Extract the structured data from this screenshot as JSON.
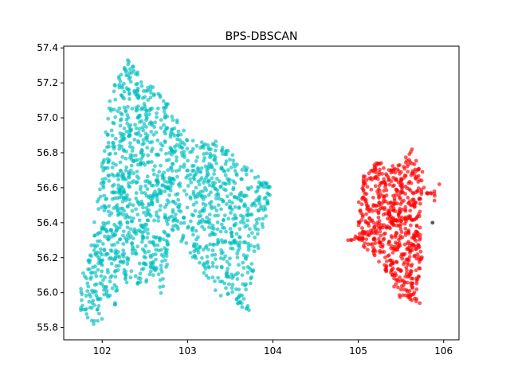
{
  "chart_data": {
    "type": "scatter",
    "title": "BPS-DBSCAN",
    "xlabel": "",
    "ylabel": "",
    "xlim": [
      101.55,
      106.18
    ],
    "ylim": [
      55.73,
      57.41
    ],
    "x_ticks": [
      102,
      103,
      104,
      105,
      106
    ],
    "y_ticks": [
      55.8,
      56.0,
      56.2,
      56.4,
      56.6,
      56.8,
      57.0,
      57.2,
      57.4
    ],
    "x_tick_labels": [
      "102",
      "103",
      "104",
      "105",
      "106"
    ],
    "y_tick_labels": [
      "55.8",
      "56.0",
      "56.2",
      "56.4",
      "56.6",
      "56.8",
      "57.0",
      "57.2",
      "57.4"
    ],
    "grid": false,
    "legend": "none",
    "series": [
      {
        "color": "#00bfbf",
        "note_shape": "polygon",
        "polygon": [
          [
            101.75,
            55.9
          ],
          [
            101.9,
            55.8
          ],
          [
            102.15,
            55.9
          ],
          [
            102.2,
            56.05
          ],
          [
            102.55,
            56.05
          ],
          [
            102.6,
            56.1
          ],
          [
            102.7,
            55.95
          ],
          [
            102.85,
            56.35
          ],
          [
            103.25,
            56.05
          ],
          [
            103.45,
            55.95
          ],
          [
            103.7,
            55.9
          ],
          [
            103.85,
            56.3
          ],
          [
            104.0,
            56.6
          ],
          [
            103.7,
            56.72
          ],
          [
            103.5,
            56.85
          ],
          [
            103.0,
            56.9
          ],
          [
            102.75,
            57.1
          ],
          [
            102.55,
            57.2
          ],
          [
            102.3,
            57.33
          ],
          [
            102.1,
            57.15
          ],
          [
            101.95,
            56.55
          ],
          [
            101.85,
            56.3
          ],
          [
            101.75,
            56.05
          ]
        ],
        "sample_points": [
          [
            101.9,
            55.82
          ],
          [
            102.3,
            57.33
          ],
          [
            103.95,
            56.6
          ],
          [
            103.72,
            55.9
          ],
          [
            101.75,
            55.9
          ],
          [
            102.5,
            57.05
          ],
          [
            103.1,
            56.6
          ],
          [
            102.1,
            56.2
          ],
          [
            103.4,
            56.3
          ]
        ]
      },
      {
        "color": "#ff0000",
        "note_shape": "polygon",
        "polygon": [
          [
            104.9,
            56.3
          ],
          [
            105.0,
            56.3
          ],
          [
            105.08,
            56.25
          ],
          [
            105.2,
            56.2
          ],
          [
            105.35,
            56.1
          ],
          [
            105.48,
            55.97
          ],
          [
            105.68,
            55.95
          ],
          [
            105.7,
            56.05
          ],
          [
            105.75,
            56.18
          ],
          [
            105.72,
            56.4
          ],
          [
            105.75,
            56.58
          ],
          [
            105.93,
            56.6
          ],
          [
            105.9,
            56.52
          ],
          [
            105.78,
            56.55
          ],
          [
            105.75,
            56.7
          ],
          [
            105.62,
            56.82
          ],
          [
            105.45,
            56.72
          ],
          [
            105.2,
            56.75
          ],
          [
            105.05,
            56.66
          ],
          [
            105.0,
            56.5
          ],
          [
            105.0,
            56.35
          ]
        ],
        "sample_points": [
          [
            105.63,
            56.82
          ],
          [
            105.72,
            55.94
          ],
          [
            104.88,
            56.3
          ],
          [
            105.95,
            56.62
          ],
          [
            105.3,
            56.65
          ],
          [
            105.4,
            56.4
          ]
        ]
      },
      {
        "color": "#000000",
        "note_shape": "points",
        "sample_points": [
          [
            105.87,
            56.4
          ]
        ]
      }
    ]
  }
}
